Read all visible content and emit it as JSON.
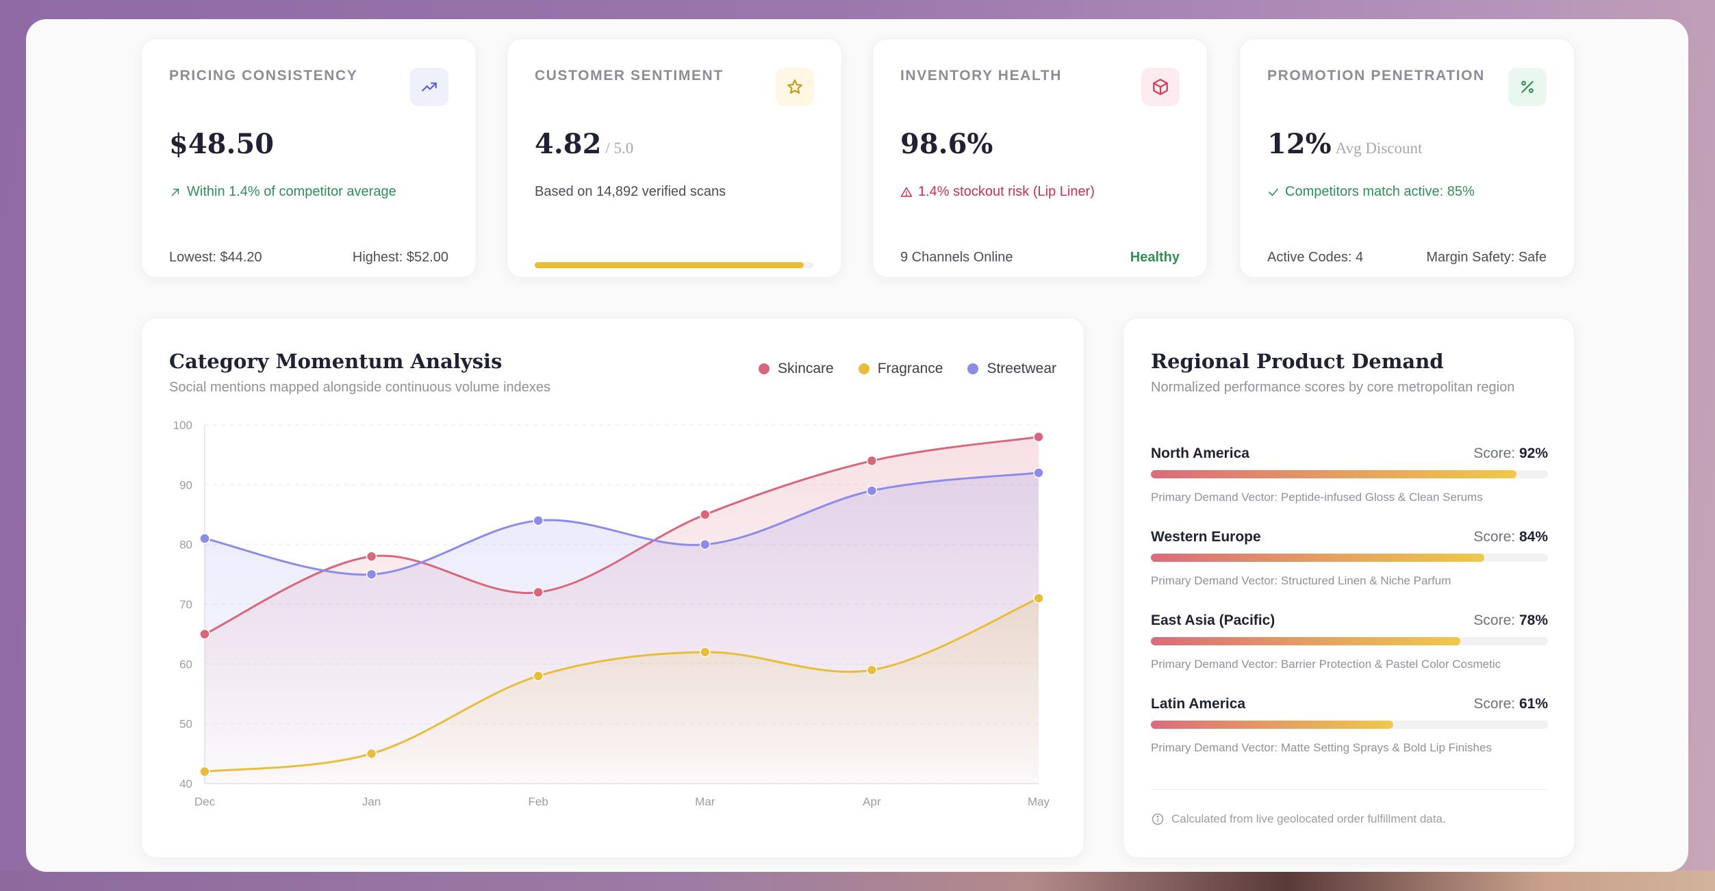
{
  "kpis": [
    {
      "label": "PRICING CONSISTENCY",
      "icon": "trend-up-icon",
      "value": "$48.50",
      "suffix": "",
      "sub": "Within 1.4% of competitor average",
      "sub_tone": "green",
      "foot_left": "Lowest: $44.20",
      "foot_right": "Highest: $52.00"
    },
    {
      "label": "CUSTOMER SENTIMENT",
      "icon": "star-icon",
      "value": "4.82",
      "suffix": "/ 5.0",
      "sub": "Based on 14,892 verified scans",
      "sub_tone": "gray",
      "rating_fraction": 0.964
    },
    {
      "label": "INVENTORY HEALTH",
      "icon": "box-icon",
      "value": "98.6%",
      "suffix": "",
      "sub": "1.4% stockout risk (Lip Liner)",
      "sub_tone": "red",
      "foot_left": "9 Channels Online",
      "foot_right": "Healthy"
    },
    {
      "label": "PROMOTION PENETRATION",
      "icon": "percent-icon",
      "value": "12%",
      "suffix": "Avg Discount",
      "sub": "Competitors match active: 85%",
      "sub_tone": "green",
      "foot_left": "Active Codes: 4",
      "foot_right": "Margin Safety: Safe"
    }
  ],
  "chart_panel": {
    "title": "Category Momentum Analysis",
    "subtitle": "Social mentions mapped alongside continuous volume indexes"
  },
  "chart_data": {
    "type": "area",
    "categories": [
      "Dec",
      "Jan",
      "Feb",
      "Mar",
      "Apr",
      "May"
    ],
    "ylim": [
      40,
      100
    ],
    "yticks": [
      100,
      90,
      80,
      70,
      60,
      50,
      40
    ],
    "legend_position": "top-right",
    "series": [
      {
        "name": "Skincare",
        "color": "#d9667a",
        "values": [
          65,
          78,
          72,
          85,
          94,
          98
        ]
      },
      {
        "name": "Fragrance",
        "color": "#e8bd3a",
        "values": [
          42,
          45,
          58,
          62,
          59,
          71
        ]
      },
      {
        "name": "Streetwear",
        "color": "#8b8bea",
        "values": [
          81,
          75,
          84,
          80,
          89,
          92
        ]
      }
    ]
  },
  "regional": {
    "title": "Regional Product Demand",
    "subtitle": "Normalized performance scores by core metropolitan region",
    "score_label": "Score:",
    "rows": [
      {
        "name": "North America",
        "score": "92%",
        "fraction": 0.92,
        "vector": "Primary Demand Vector: Peptide-infused Gloss & Clean Serums"
      },
      {
        "name": "Western Europe",
        "score": "84%",
        "fraction": 0.84,
        "vector": "Primary Demand Vector: Structured Linen & Niche Parfum"
      },
      {
        "name": "East Asia (Pacific)",
        "score": "78%",
        "fraction": 0.78,
        "vector": "Primary Demand Vector: Barrier Protection & Pastel Color Cosmetic"
      },
      {
        "name": "Latin America",
        "score": "61%",
        "fraction": 0.61,
        "vector": "Primary Demand Vector: Matte Setting Sprays & Bold Lip Finishes"
      }
    ],
    "note": "Calculated from live geolocated order fulfillment data."
  }
}
